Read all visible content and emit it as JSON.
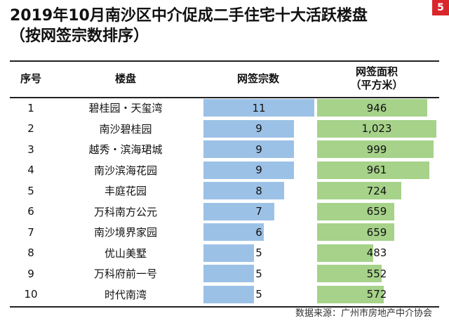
{
  "header": {
    "title_line1": "2019年10月南沙区中介促成二手住宅十大活跃楼盘",
    "title_line2": "（按网签宗数排序）",
    "page_badge": "5"
  },
  "columns": {
    "rank": "序号",
    "project": "楼盘",
    "count": "网签宗数",
    "area_line1": "网签面积",
    "area_line2": "（平方米）"
  },
  "rows": [
    {
      "rank": "1",
      "project": "碧桂园・天玺湾",
      "count_label": "11",
      "area_label": "946"
    },
    {
      "rank": "2",
      "project": "南沙碧桂园",
      "count_label": "9",
      "area_label": "1,023"
    },
    {
      "rank": "3",
      "project": "越秀・滨海珺城",
      "count_label": "9",
      "area_label": "999"
    },
    {
      "rank": "4",
      "project": "南沙滨海花园",
      "count_label": "9",
      "area_label": "961"
    },
    {
      "rank": "5",
      "project": "丰庭花园",
      "count_label": "8",
      "area_label": "724"
    },
    {
      "rank": "6",
      "project": "万科南方公元",
      "count_label": "7",
      "area_label": "659"
    },
    {
      "rank": "7",
      "project": "南沙境界家园",
      "count_label": "6",
      "area_label": "659"
    },
    {
      "rank": "8",
      "project": "优山美墅",
      "count_label": "5",
      "area_label": "483"
    },
    {
      "rank": "9",
      "project": "万科府前一号",
      "count_label": "5",
      "area_label": "552"
    },
    {
      "rank": "10",
      "project": "时代南湾",
      "count_label": "5",
      "area_label": "572"
    }
  ],
  "source": "数据来源：广州市房地产中介协会",
  "colors": {
    "count_bar": "#9cc1e6",
    "area_bar": "#a6d28a",
    "badge": "#d9262b"
  },
  "chart_data": {
    "type": "table",
    "title": "2019年10月南沙区中介促成二手住宅十大活跃楼盘（按网签宗数排序）",
    "columns": [
      "序号",
      "楼盘",
      "网签宗数",
      "网签面积（平方米）"
    ],
    "categories": [
      "碧桂园・天玺湾",
      "南沙碧桂园",
      "越秀・滨海珺城",
      "南沙滨海花园",
      "丰庭花园",
      "万科南方公元",
      "南沙境界家园",
      "优山美墅",
      "万科府前一号",
      "时代南湾"
    ],
    "series": [
      {
        "name": "网签宗数",
        "values": [
          11,
          9,
          9,
          9,
          8,
          7,
          6,
          5,
          5,
          5
        ]
      },
      {
        "name": "网签面积（平方米）",
        "values": [
          946,
          1023,
          999,
          961,
          724,
          659,
          659,
          483,
          552,
          572
        ]
      }
    ]
  }
}
